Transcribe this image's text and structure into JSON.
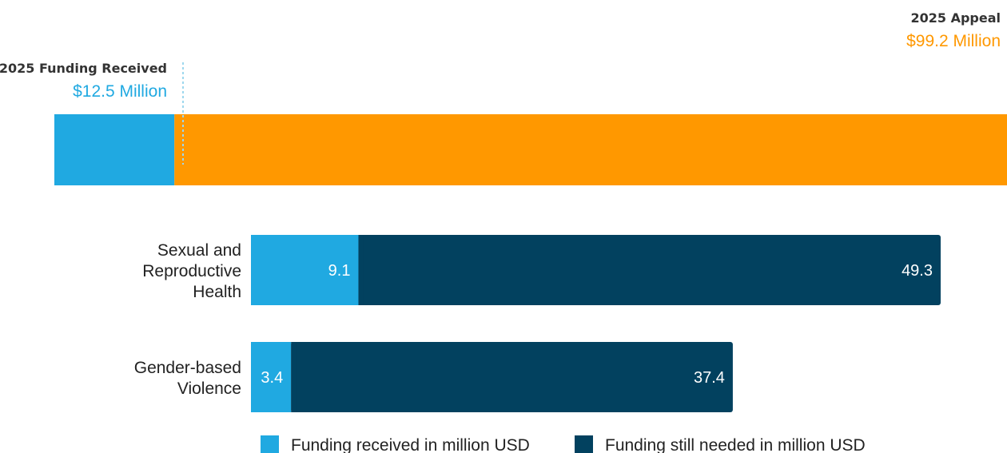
{
  "colors": {
    "received": "#20A9E1",
    "needed": "#02415F",
    "appeal": "#FF9800",
    "marker": "#9ED8EE"
  },
  "chart_data": [
    {
      "type": "bar",
      "orientation": "horizontal",
      "stacked": true,
      "categories": [
        "2025"
      ],
      "series": [
        {
          "name": "2025 Funding Received",
          "values": [
            12.5
          ]
        },
        {
          "name": "2025 Appeal",
          "values": [
            99.2
          ]
        }
      ],
      "annotations": {
        "received": {
          "title": "2025 Funding Received",
          "value": "$12.5 Million"
        },
        "appeal": {
          "title": "2025 Appeal",
          "value": "$99.2 Million"
        }
      }
    },
    {
      "type": "bar",
      "orientation": "horizontal",
      "stacked": true,
      "categories": [
        {
          "id": "srh",
          "lines": [
            "Sexual and",
            "Reproductive",
            "Health"
          ]
        },
        {
          "id": "gbv",
          "lines": [
            "Gender-based",
            "Violence"
          ]
        }
      ],
      "series": [
        {
          "name": "Funding received in million USD",
          "values": [
            9.1,
            3.4
          ]
        },
        {
          "name": "Funding still needed in million USD",
          "values": [
            49.3,
            37.4
          ]
        }
      ],
      "xlim": [
        0,
        58.4
      ],
      "legend": "bottom"
    }
  ]
}
